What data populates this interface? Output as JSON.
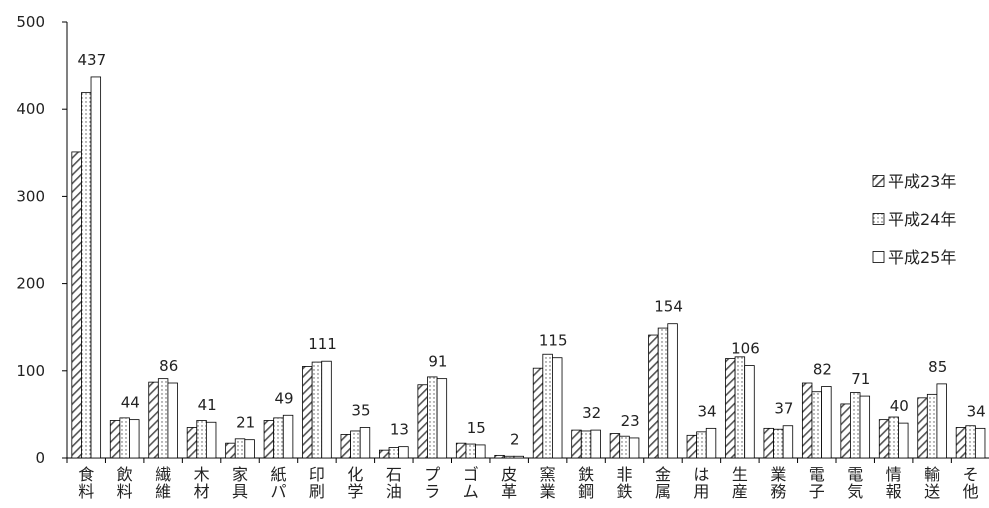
{
  "chart_data": {
    "type": "bar",
    "title": "",
    "xlabel": "",
    "ylabel": "",
    "ylim": [
      0,
      500
    ],
    "yticks": [
      0,
      100,
      200,
      300,
      400,
      500
    ],
    "grid": false,
    "legend_position": "right",
    "categories": [
      [
        "食",
        "料"
      ],
      [
        "飲",
        "料"
      ],
      [
        "繊",
        "維"
      ],
      [
        "木",
        "材"
      ],
      [
        "家",
        "具"
      ],
      [
        "紙",
        "パ"
      ],
      [
        "印",
        "刷"
      ],
      [
        "化",
        "学"
      ],
      [
        "石",
        "油"
      ],
      [
        "プ",
        "ラ"
      ],
      [
        "ゴ",
        "ム"
      ],
      [
        "皮",
        "革"
      ],
      [
        "窯",
        "業"
      ],
      [
        "鉄",
        "鋼"
      ],
      [
        "非",
        "鉄"
      ],
      [
        "金",
        "属"
      ],
      [
        "は",
        "用"
      ],
      [
        "生",
        "産"
      ],
      [
        "業",
        "務"
      ],
      [
        "電",
        "子"
      ],
      [
        "電",
        "気"
      ],
      [
        "情",
        "報"
      ],
      [
        "輸",
        "送"
      ],
      [
        "そ",
        "他"
      ]
    ],
    "series": [
      {
        "name": "平成23年",
        "style": "hatched",
        "values": [
          351,
          43,
          87,
          35,
          17,
          43,
          105,
          27,
          9,
          84,
          17,
          3,
          103,
          32,
          28,
          141,
          26,
          114,
          34,
          86,
          62,
          44,
          69,
          35
        ]
      },
      {
        "name": "平成24年",
        "style": "dotted",
        "values": [
          419,
          46,
          91,
          43,
          22,
          46,
          110,
          31,
          12,
          93,
          16,
          2,
          119,
          31,
          25,
          149,
          30,
          116,
          33,
          76,
          75,
          47,
          73,
          37
        ]
      },
      {
        "name": "平成25年",
        "style": "plain",
        "values": [
          437,
          44,
          86,
          41,
          21,
          49,
          111,
          35,
          13,
          91,
          15,
          2,
          115,
          32,
          23,
          154,
          34,
          106,
          37,
          82,
          71,
          40,
          85,
          34
        ]
      }
    ],
    "data_labels_series": 2,
    "data_labels": [
      "437",
      "44",
      "86",
      "41",
      "21",
      "49",
      "111",
      "35",
      "13",
      "91",
      "15",
      "2",
      "115",
      "32",
      "23",
      "154",
      "34",
      "106",
      "37",
      "82",
      "71",
      "40",
      "85",
      "34"
    ],
    "colors": {
      "axis": "#000000",
      "bar_stroke": "#000000",
      "hatch": "#555555",
      "fill": "#ffffff"
    }
  }
}
